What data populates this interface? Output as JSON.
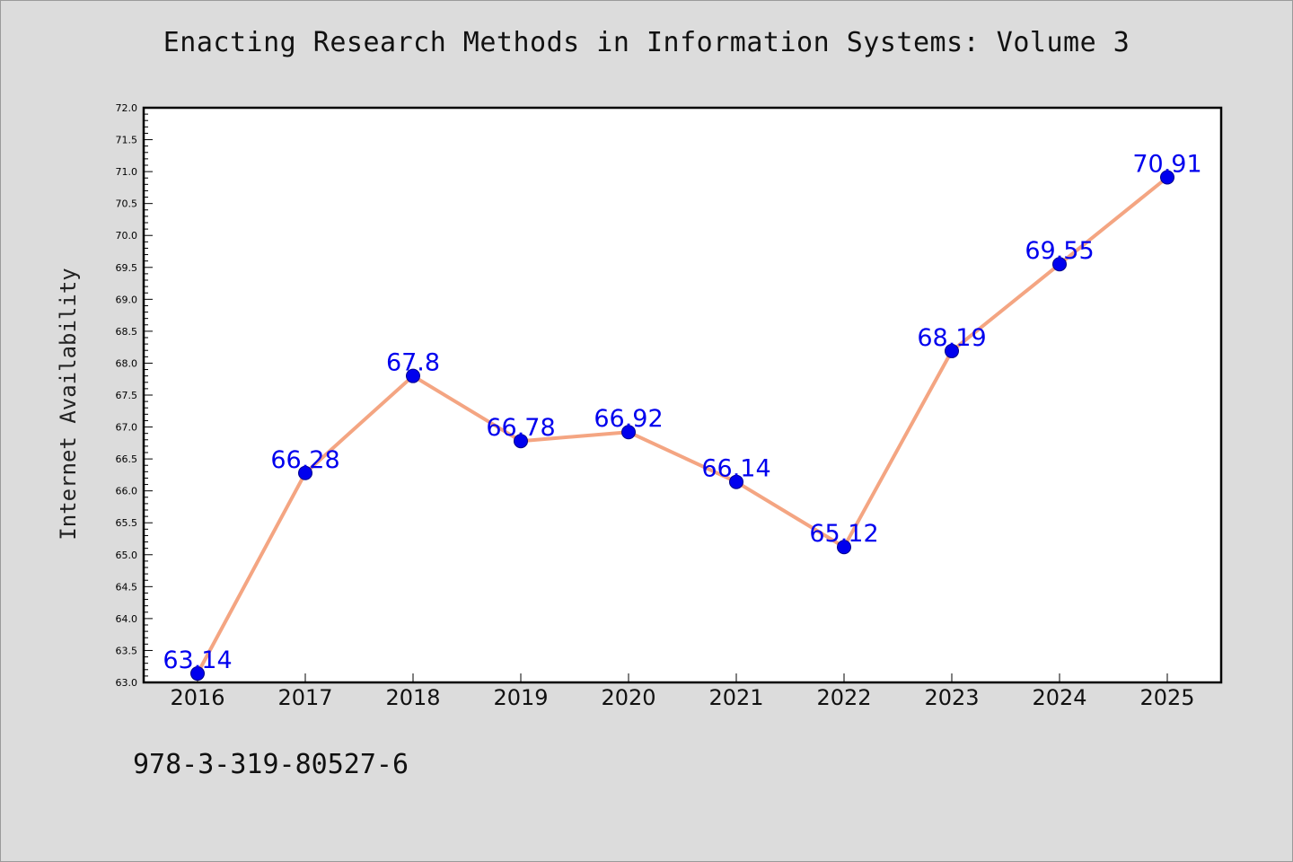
{
  "chart_data": {
    "type": "line",
    "title": "Enacting Research Methods in Information Systems: Volume 3",
    "xlabel": "",
    "ylabel": "Internet Availability",
    "x": [
      "2016",
      "2017",
      "2018",
      "2019",
      "2020",
      "2021",
      "2022",
      "2023",
      "2024",
      "2025"
    ],
    "series": [
      {
        "values": [
          63.14,
          66.28,
          67.8,
          66.78,
          66.92,
          66.14,
          65.12,
          68.19,
          69.55,
          70.91
        ],
        "labels": [
          "63.14",
          "66.28",
          "67.8",
          "66.78",
          "66.92",
          "66.14",
          "65.12",
          "68.19",
          "69.55",
          "70.91"
        ],
        "line_color": "#f4a582",
        "marker_color": "#0000ee"
      }
    ],
    "ylim": [
      63.0,
      72.0
    ],
    "yticks": [
      "63.0",
      "63.5",
      "64.0",
      "64.5",
      "65.0",
      "65.5",
      "66.0",
      "66.5",
      "67.0",
      "67.5",
      "68.0",
      "68.5",
      "69.0",
      "69.5",
      "70.0",
      "70.5",
      "71.0",
      "71.5",
      "72.0"
    ],
    "grid": false,
    "legend": "none"
  },
  "footnote": "978-3-319-80527-6"
}
